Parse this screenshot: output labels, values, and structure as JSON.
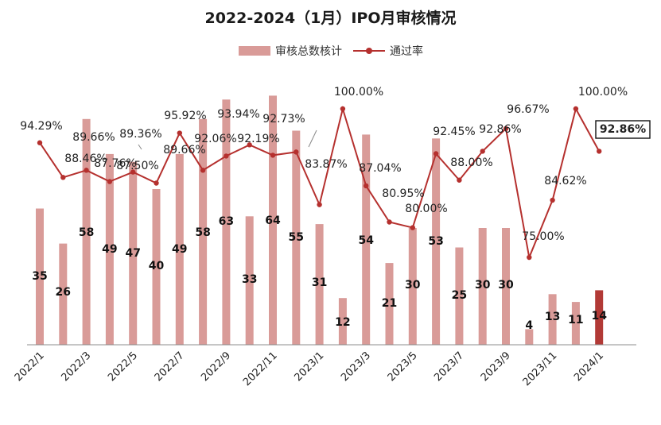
{
  "title": "2022-2024（1月）IPO月审核情况",
  "legend": {
    "bar_label": "审核总数核计",
    "line_label": "通过率"
  },
  "colors": {
    "bar": "#d99b98",
    "bar_highlight": "#b23a36",
    "line": "#b5302e",
    "axis": "#8c8c8c"
  },
  "chart_data": {
    "type": "bar",
    "title": "2022-2024（1月）IPO月审核情况",
    "xlabel": "",
    "ylabel": "",
    "categories": [
      "2022/1",
      "2022/2",
      "2022/3",
      "2022/4",
      "2022/5",
      "2022/6",
      "2022/7",
      "2022/8",
      "2022/9",
      "2022/10",
      "2022/11",
      "2022/12",
      "2023/1",
      "2023/2",
      "2023/3",
      "2023/4",
      "2023/5",
      "2023/6",
      "2023/7",
      "2023/8",
      "2023/9",
      "2023/10",
      "2023/11",
      "2023/12",
      "2024/1"
    ],
    "x_tick_labels": [
      "2022/1",
      "",
      "2022/3",
      "",
      "2022/5",
      "",
      "2022/7",
      "",
      "2022/9",
      "",
      "2022/11",
      "",
      "2023/1",
      "",
      "2023/3",
      "",
      "2023/5",
      "",
      "2023/7",
      "",
      "2023/9",
      "",
      "2023/11",
      "",
      "2024/1"
    ],
    "series": [
      {
        "name": "审核总数核计",
        "type": "bar",
        "values": [
          35,
          26,
          58,
          49,
          47,
          40,
          49,
          58,
          63,
          33,
          64,
          55,
          31,
          12,
          54,
          21,
          30,
          53,
          25,
          30,
          30,
          4,
          13,
          11,
          14
        ],
        "value_labels": [
          "35",
          "26",
          "58",
          "49",
          "47",
          "40",
          "49",
          "58",
          "63",
          "33",
          "64",
          "55",
          "31",
          "12",
          "54",
          "21",
          "30",
          "53",
          "25",
          "30",
          "30",
          "4",
          "13",
          "11",
          "14"
        ],
        "highlight_index": 24
      },
      {
        "name": "通过率",
        "type": "line",
        "values": [
          94.29,
          88.46,
          89.66,
          87.76,
          89.36,
          87.5,
          95.92,
          89.66,
          92.06,
          93.94,
          92.19,
          92.73,
          83.87,
          100.0,
          87.04,
          80.95,
          80.0,
          92.45,
          88.0,
          92.86,
          96.67,
          75.0,
          84.62,
          100.0,
          92.86
        ],
        "value_labels": [
          "94.29%",
          "88.46%",
          "89.66%",
          "87.76%",
          "89.36%",
          "87.50%",
          "95.92%",
          "89.66%",
          "92.06%",
          "93.94%",
          "92.19%",
          "92.73%",
          "83.87%",
          "100.00%",
          "87.04%",
          "80.95%",
          "80.00%",
          "92.45%",
          "88.00%",
          "92.86%",
          "96.67%",
          "75.00%",
          "84.62%",
          "100.00%",
          "92.86%"
        ],
        "highlight_index": 24
      }
    ],
    "ylim_bars": [
      0,
      65
    ],
    "ylim_rate": [
      0,
      100
    ],
    "grid": false,
    "legend_position": "top-center"
  }
}
